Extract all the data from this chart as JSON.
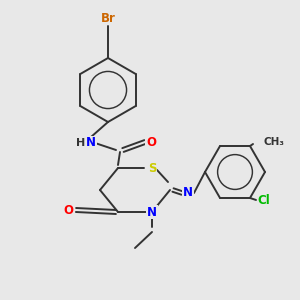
{
  "background_color": "#e8e8e8",
  "bond_color": "#333333",
  "atom_colors": {
    "N": "#0000ff",
    "O": "#ff0000",
    "S": "#cccc00",
    "Br": "#cc6600",
    "Cl": "#00bb00",
    "H": "#333333",
    "C": "#333333"
  },
  "figsize": [
    3.0,
    3.0
  ],
  "dpi": 100,
  "lw": 1.4,
  "fs": 8.5
}
